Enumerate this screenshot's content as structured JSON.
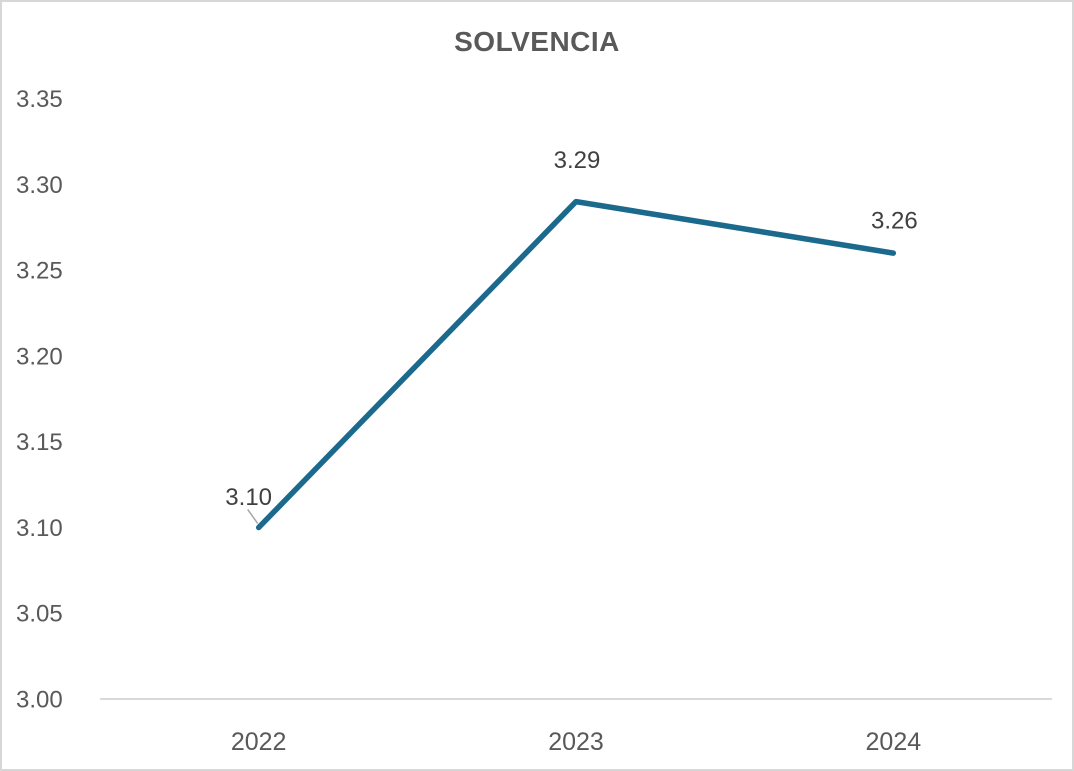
{
  "chart": {
    "title": "SOLVENCIA"
  },
  "chart_data": {
    "type": "line",
    "title": "SOLVENCIA",
    "categories": [
      "2022",
      "2023",
      "2024"
    ],
    "series": [
      {
        "name": "SOLVENCIA",
        "values": [
          3.1,
          3.29,
          3.26
        ]
      }
    ],
    "data_labels": [
      "3.10",
      "3.29",
      "3.26"
    ],
    "y_ticks": [
      "3.35",
      "3.30",
      "3.25",
      "3.20",
      "3.15",
      "3.10",
      "3.05",
      "3.00"
    ],
    "ylim": [
      3.0,
      3.35
    ],
    "xlabel": "",
    "ylabel": "",
    "grid": false,
    "legend": "none",
    "colors": {
      "line": "#1B698C",
      "title_text": "#595959",
      "axis_text": "#595959",
      "data_label_text": "#404040",
      "axis_line": "#D9D9D9",
      "leader_line": "#A6A6A6",
      "background": "#FFFFFF",
      "border": "#D7D7D7"
    }
  }
}
